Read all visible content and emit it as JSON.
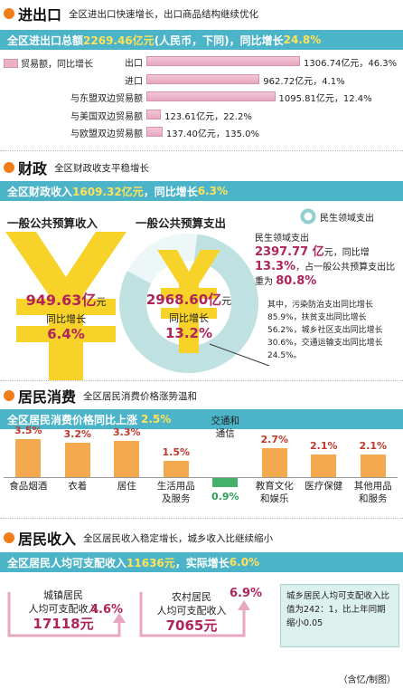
{
  "trade": {
    "title": "进出口",
    "subtitle": "全区进出口快速增长，出口商品结构继续优化",
    "banner_pre": "全区进出口总额",
    "banner_value": "2269.46亿元",
    "banner_mid": "(人民币，下同)，同比增长",
    "banner_pct": "24.8%",
    "legend": "贸易额，同比增长"
  },
  "finance": {
    "title": "财政",
    "subtitle": "全区财政收支平稳增长",
    "banner_pre": "全区财政收入",
    "banner_value": "1609.32亿元",
    "banner_mid": "，同比增长",
    "banner_pct": "6.3%",
    "legend": "民生领域支出",
    "income_title": "一般公共预算收入",
    "income_value": "949.63亿",
    "income_unit": "元",
    "income_growth_label": "同比增长",
    "income_growth": "6.4%",
    "expense_title": "一般公共预算支出",
    "expense_value": "2968.60亿",
    "expense_unit": "元",
    "expense_growth_label": "同比增长",
    "expense_growth": "13.2%",
    "ls_label": "民生领域支出",
    "ls_value": "2397.77 亿",
    "ls_unit": "元，同比增",
    "ls_growth": "13.3%",
    "ls_tail": "，占一般公共预算支出比",
    "ls_share_pre": "重为",
    "ls_share": "80.8%",
    "note": "其中，污染防治支出同比增长85.9%，扶贫支出同比增长56.2%，城乡社区支出同比增长30.6%，交通运输支出同比增长24.5%。"
  },
  "consumption": {
    "title": "居民消费",
    "subtitle": "全区居民消费价格涨势温和",
    "banner_pre": "全区居民消费价格同比上涨",
    "banner_pct": "2.5%"
  },
  "income": {
    "title": "居民收入",
    "subtitle": "全区居民收入稳定增长，城乡收入比继续缩小",
    "banner_pre": "全区居民人均可支配收入",
    "banner_value": "11636元",
    "banner_mid": "，实际增长",
    "banner_pct": "6.0%",
    "urban_l1": "城镇居民",
    "urban_l2": "人均可支配收入",
    "urban_pct": "4.6%",
    "urban_value": "17118元",
    "rural_l1": "农村居民",
    "rural_l2": "人均可支配收入",
    "rural_pct": "6.9%",
    "rural_value": "7065元",
    "ratio_note": "城乡居民人均可支配收入比值为242：1，比上年同期缩小0.05",
    "credit": "（含忆/制图）"
  },
  "colors": {
    "accent_blue": "#4cb4c8",
    "bar_pink": "#eab0c6",
    "bar_orange": "#f5a94e",
    "bar_green": "#44b06a",
    "yen_yellow": "#f7d329",
    "ring_teal": "#bfe1e1",
    "text_red": "#c0392b"
  },
  "chart_data": [
    {
      "type": "bar",
      "orientation": "horizontal",
      "categories": [
        "出口",
        "进口",
        "与东盟双边贸易额",
        "与美国双边贸易额",
        "与欧盟双边贸易额"
      ],
      "series": [
        {
          "name": "贸易额",
          "values": [
            1306.74,
            962.72,
            1095.81,
            123.61,
            137.4
          ]
        },
        {
          "name": "同比增长",
          "values": [
            46.3,
            4.1,
            12.4,
            22.2,
            135.0
          ]
        }
      ],
      "labels": [
        "1306.74亿元，46.3%",
        "962.72亿元，4.1%",
        "1095.81亿元，12.4%",
        "123.61亿元，22.2%",
        "137.40亿元，135.0%"
      ]
    },
    {
      "type": "bar",
      "categories": [
        "食品烟酒",
        "衣着",
        "居住",
        "生活用品及服务",
        "交通和通信",
        "教育文化和娱乐",
        "医疗保健",
        "其他用品和服务"
      ],
      "values": [
        3.5,
        3.2,
        3.3,
        1.5,
        -0.9,
        2.7,
        2.1,
        2.1
      ],
      "labels": [
        "3.5%",
        "3.2%",
        "3.3%",
        "1.5%",
        "-0.9%",
        "2.7%",
        "2.1%",
        "2.1%"
      ]
    },
    {
      "type": "pie",
      "title": "一般公共预算支出",
      "categories": [
        "民生领域支出",
        "其他"
      ],
      "values": [
        80.8,
        19.2
      ]
    }
  ]
}
